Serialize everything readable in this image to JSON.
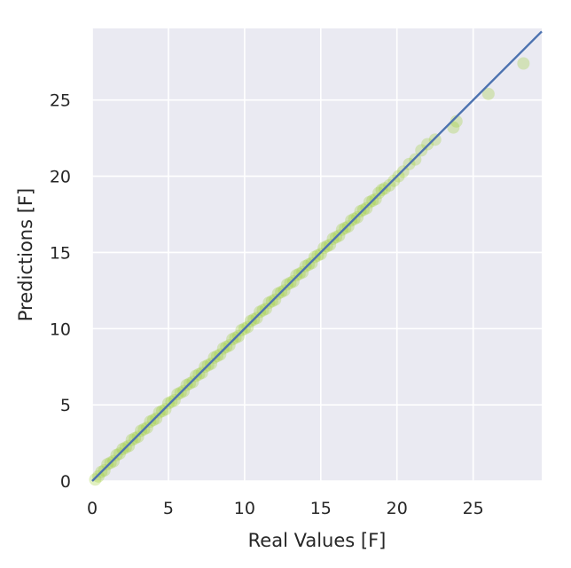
{
  "chart_data": {
    "type": "scatter",
    "title": "",
    "xlabel": "Real Values [F]",
    "ylabel": "Predictions [F]",
    "xlim": [
      0,
      29.5
    ],
    "ylim": [
      0,
      29.7
    ],
    "xticks": [
      0,
      5,
      10,
      15,
      20,
      25
    ],
    "yticks": [
      0,
      5,
      10,
      15,
      20,
      25
    ],
    "grid": true,
    "background": "#eaeaf2",
    "point_color": "#9acd32",
    "point_alpha": 0.3,
    "line_color": "#4c72b0",
    "reference_line": {
      "x": [
        0,
        29.5
      ],
      "y": [
        0,
        29.5
      ]
    },
    "series": [
      {
        "x": [
          0.2,
          0.4,
          0.6,
          0.8,
          1.0,
          1.2,
          1.4,
          1.6,
          1.8,
          2.0,
          2.2,
          2.4,
          2.6,
          2.8,
          3.0,
          3.2,
          3.4,
          3.6,
          3.8,
          4.0,
          4.2,
          4.4,
          4.6,
          4.8,
          5.0,
          5.2,
          5.4,
          5.6,
          5.8,
          6.0,
          6.2,
          6.4,
          6.6,
          6.8,
          7.0,
          7.2,
          7.4,
          7.6,
          7.8,
          8.0,
          8.2,
          8.4,
          8.6,
          8.8,
          9.0,
          9.2,
          9.4,
          9.6,
          9.8,
          10.0,
          10.2,
          10.4,
          10.6,
          10.8,
          11.0,
          11.2,
          11.4,
          11.6,
          11.8,
          12.0,
          12.2,
          12.4,
          12.6,
          12.8,
          13.0,
          13.2,
          13.4,
          13.6,
          13.8,
          14.0,
          14.2,
          14.4,
          14.6,
          14.8,
          15.0,
          15.2,
          15.4,
          15.6,
          15.8,
          16.0,
          16.2,
          16.4,
          16.6,
          16.8,
          17.0,
          17.2,
          17.4,
          17.6,
          17.8,
          18.0,
          18.2,
          18.4,
          18.6,
          18.8,
          19.0,
          19.2,
          19.5,
          19.8,
          20.1,
          20.4,
          20.8,
          21.2,
          21.6,
          22.0,
          22.5,
          23.7,
          23.9,
          26.0,
          28.3
        ],
        "y": [
          0.1,
          0.3,
          0.6,
          0.7,
          1.1,
          1.2,
          1.3,
          1.7,
          1.8,
          2.1,
          2.2,
          2.3,
          2.7,
          2.8,
          2.9,
          3.3,
          3.4,
          3.5,
          3.9,
          4.0,
          4.1,
          4.5,
          4.6,
          4.7,
          5.1,
          5.2,
          5.3,
          5.7,
          5.8,
          5.9,
          6.3,
          6.4,
          6.5,
          6.9,
          7.0,
          7.1,
          7.5,
          7.6,
          7.7,
          8.1,
          8.2,
          8.3,
          8.7,
          8.8,
          8.9,
          9.3,
          9.4,
          9.5,
          9.9,
          10.0,
          10.1,
          10.5,
          10.6,
          10.7,
          11.1,
          11.2,
          11.3,
          11.7,
          11.8,
          11.9,
          12.3,
          12.4,
          12.5,
          12.9,
          13.0,
          13.1,
          13.5,
          13.6,
          13.7,
          14.1,
          14.2,
          14.3,
          14.7,
          14.8,
          14.9,
          15.3,
          15.4,
          15.5,
          15.9,
          16.0,
          16.1,
          16.5,
          16.6,
          16.7,
          17.1,
          17.2,
          17.3,
          17.7,
          17.8,
          17.9,
          18.3,
          18.4,
          18.5,
          18.9,
          19.1,
          19.2,
          19.4,
          19.7,
          20.0,
          20.3,
          20.8,
          21.1,
          21.7,
          22.1,
          22.4,
          23.2,
          23.6,
          25.4,
          27.4
        ]
      }
    ]
  }
}
